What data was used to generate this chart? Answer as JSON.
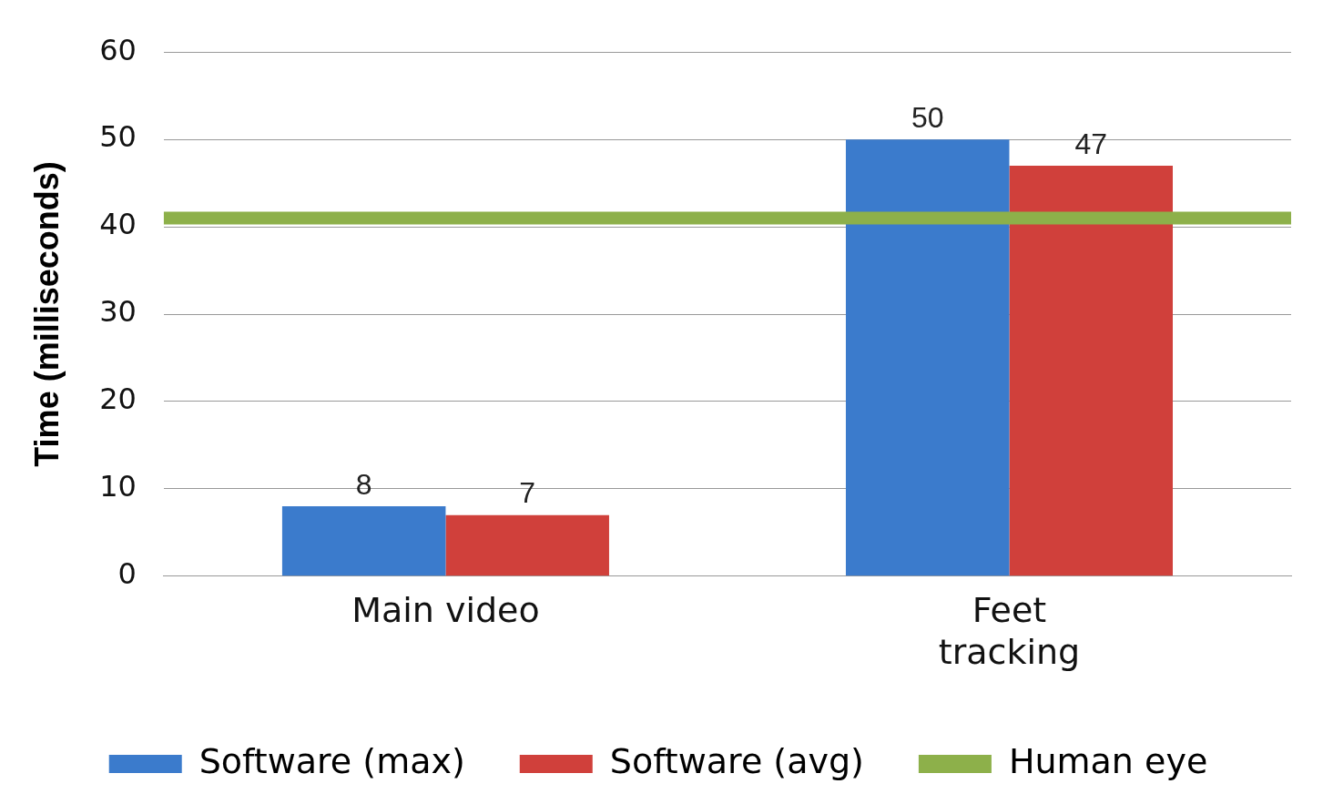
{
  "chart_data": {
    "type": "bar",
    "ylabel": "Time (milliseconds)",
    "categories": [
      "Main video",
      "Feet tracking"
    ],
    "series": [
      {
        "name": "Software (max)",
        "color": "#3b7bcc",
        "values": [
          8,
          50
        ]
      },
      {
        "name": "Software (avg)",
        "color": "#d0403b",
        "values": [
          7,
          47
        ]
      }
    ],
    "ref_lines": [
      {
        "axis": "y",
        "value": 41,
        "label": "Human eye",
        "color": "#8db04a"
      }
    ],
    "ylim": [
      0,
      60
    ],
    "yticks": [
      0,
      10,
      20,
      30,
      40,
      50,
      60
    ],
    "grid": "y",
    "legend": "bottom",
    "data_labels": true
  }
}
